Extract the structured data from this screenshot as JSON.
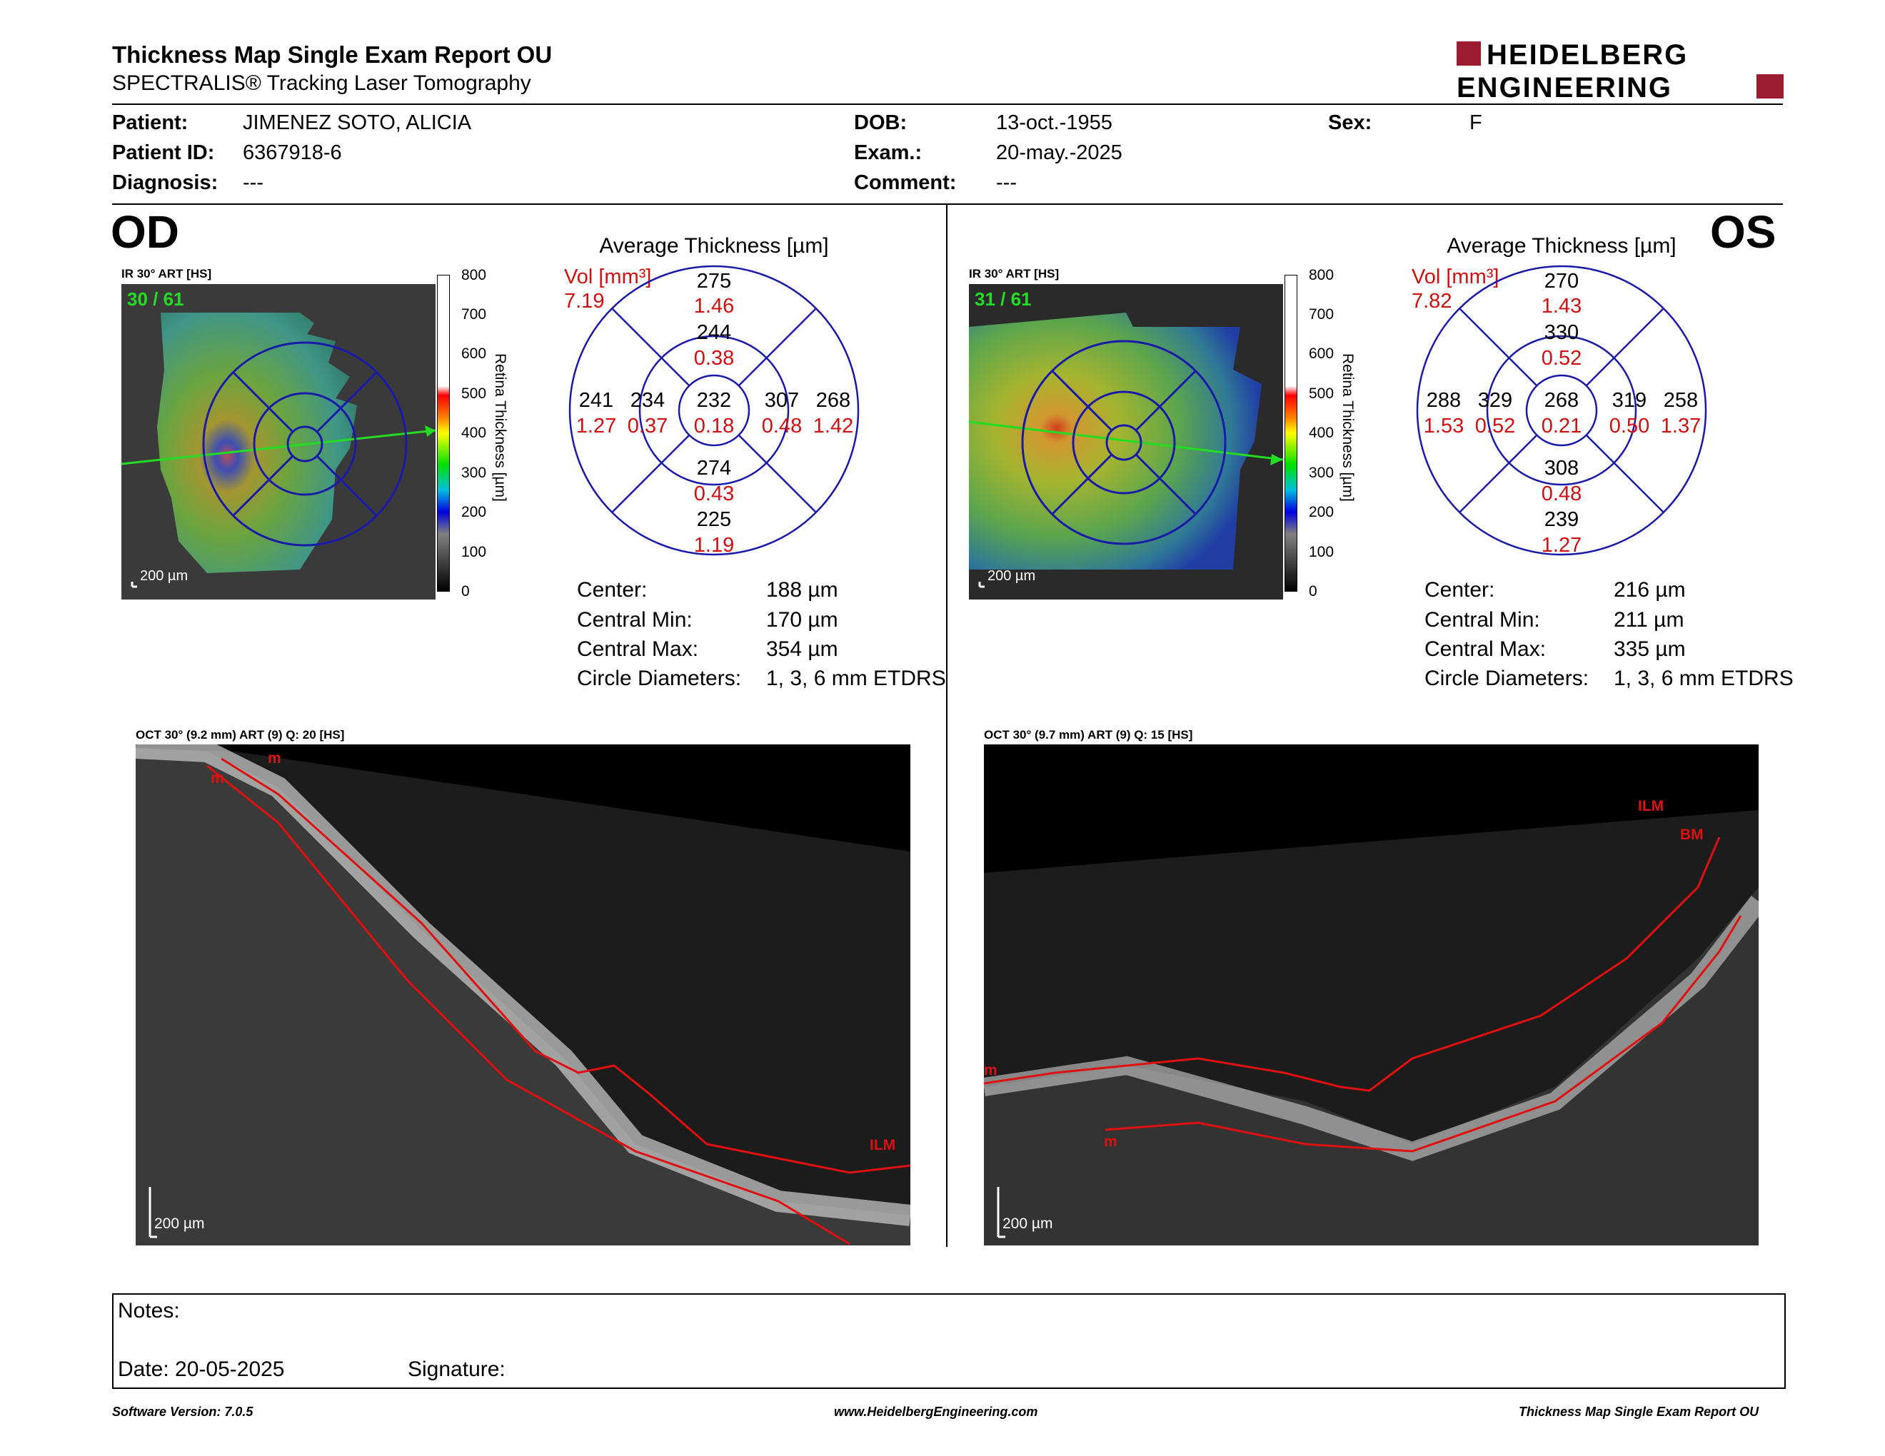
{
  "report": {
    "title": "Thickness Map Single Exam Report OU",
    "subtitle": "SPECTRALIS® Tracking Laser Tomography",
    "logo_line1": "HEIDELBERG",
    "logo_line2": "ENGINEERING"
  },
  "patient": {
    "patient_label": "Patient:",
    "patient_value": "JIMENEZ SOTO, ALICIA",
    "id_label": "Patient ID:",
    "id_value": "6367918-6",
    "diagnosis_label": "Diagnosis:",
    "diagnosis_value": "---",
    "dob_label": "DOB:",
    "dob_value": "13-oct.-1955",
    "exam_label": "Exam.:",
    "exam_value": "20-may.-2025",
    "comment_label": "Comment:",
    "comment_value": "---",
    "sex_label": "Sex:",
    "sex_value": "F"
  },
  "od": {
    "eye": "OD",
    "ir_title": "IR 30° ART [HS]",
    "frames": "30 / 61",
    "scale": "200 µm",
    "avg_title": "Average Thickness [µm]",
    "vol_label": "Vol [mm³]",
    "vol_total": "7.19",
    "etdrs": {
      "center": {
        "t": "232",
        "v": "0.18"
      },
      "inner_sup": {
        "t": "244",
        "v": "0.38"
      },
      "outer_sup": {
        "t": "275",
        "v": "1.46"
      },
      "inner_inf": {
        "t": "274",
        "v": "0.43"
      },
      "outer_inf": {
        "t": "225",
        "v": "1.19"
      },
      "inner_left": {
        "t": "234",
        "v": "0.37"
      },
      "outer_left": {
        "t": "241",
        "v": "1.27"
      },
      "inner_right": {
        "t": "307",
        "v": "0.48"
      },
      "outer_right": {
        "t": "268",
        "v": "1.42"
      }
    },
    "stats": {
      "center_label": "Center:",
      "center_value": "188 µm",
      "min_label": "Central Min:",
      "min_value": "170 µm",
      "max_label": "Central Max:",
      "max_value": "354 µm",
      "diam_label": "Circle Diameters:",
      "diam_value": "1, 3, 6 mm ETDRS"
    },
    "oct_title": "OCT 30° (9.2 mm) ART (9) Q: 20 [HS]",
    "oct_scale": "200 µm",
    "oct_markers": {
      "m1": "m",
      "m2": "m",
      "ilm": "ILM"
    }
  },
  "os": {
    "eye": "OS",
    "ir_title": "IR 30° ART [HS]",
    "frames": "31 / 61",
    "scale": "200 µm",
    "avg_title": "Average Thickness [µm]",
    "vol_label": "Vol [mm³]",
    "vol_total": "7.82",
    "etdrs": {
      "center": {
        "t": "268",
        "v": "0.21"
      },
      "inner_sup": {
        "t": "330",
        "v": "0.52"
      },
      "outer_sup": {
        "t": "270",
        "v": "1.43"
      },
      "inner_inf": {
        "t": "308",
        "v": "0.48"
      },
      "outer_inf": {
        "t": "239",
        "v": "1.27"
      },
      "inner_left": {
        "t": "329",
        "v": "0.52"
      },
      "outer_left": {
        "t": "288",
        "v": "1.53"
      },
      "inner_right": {
        "t": "319",
        "v": "0.50"
      },
      "outer_right": {
        "t": "258",
        "v": "1.37"
      }
    },
    "stats": {
      "center_label": "Center:",
      "center_value": "216 µm",
      "min_label": "Central Min:",
      "min_value": "211 µm",
      "max_label": "Central Max:",
      "max_value": "335 µm",
      "diam_label": "Circle Diameters:",
      "diam_value": "1, 3, 6 mm ETDRS"
    },
    "oct_title": "OCT 30° (9.7 mm) ART (9) Q: 15 [HS]",
    "oct_scale": "200 µm",
    "oct_markers": {
      "ilm": "ILM",
      "bm": "BM",
      "m1": "m",
      "m2": "m"
    }
  },
  "colorbar": {
    "title": "Retina  Thickness [µm]",
    "ticks": [
      "800",
      "700",
      "600",
      "500",
      "400",
      "300",
      "200",
      "100",
      "0"
    ]
  },
  "notes": {
    "notes_label": "Notes:",
    "date_label": "Date: 20-05-2025",
    "signature_label": "Signature:"
  },
  "footer": {
    "software": "Software Version: 7.0.5",
    "website": "www.HeidelbergEngineering.com",
    "report_name": "Thickness Map Single Exam Report OU"
  },
  "colors": {
    "volume_red": "#d01010",
    "etdrs_blue": "#1a1aa8",
    "logo_red": "#9b1b30",
    "scan_line_green": "#22dd22"
  }
}
